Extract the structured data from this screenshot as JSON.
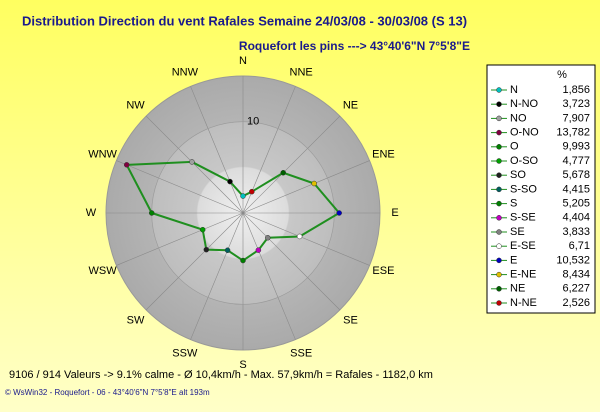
{
  "chart_data": {
    "type": "radar",
    "title": "Distribution Direction du vent Rafales  Semaine 24/03/08 - 30/03/08 (S 13)",
    "subtitle": "Roquefort les pins    --->  43°40'6\"N 7°5'8\"E",
    "axis_labels": [
      "N",
      "NNE",
      "NE",
      "ENE",
      "E",
      "ESE",
      "SE",
      "SSE",
      "S",
      "SSW",
      "SW",
      "WSW",
      "W",
      "WNW",
      "NW",
      "NNW"
    ],
    "categories": [
      "N",
      "N-NO",
      "NO",
      "O-NO",
      "O",
      "O-SO",
      "SO",
      "S-SO",
      "S",
      "S-SE",
      "SE",
      "E-SE",
      "E",
      "E-NE",
      "NE",
      "N-NE"
    ],
    "values": [
      1.856,
      3.723,
      7.907,
      13.782,
      9.993,
      4.777,
      5.678,
      4.415,
      5.205,
      4.404,
      3.833,
      6.71,
      10.532,
      8.434,
      6.227,
      2.526
    ],
    "value_labels": [
      "1,856",
      "3,723",
      "7,907",
      "13,782",
      "9,993",
      "4,777",
      "5,678",
      "4,415",
      "5,205",
      "4,404",
      "3,833",
      "6,71",
      "10,532",
      "8,434",
      "6,227",
      "2,526"
    ],
    "colors": [
      "#00c0c0",
      "#000000",
      "#a0a0a0",
      "#800040",
      "#008000",
      "#00a000",
      "#202020",
      "#006060",
      "#008000",
      "#c000c0",
      "#808080",
      "#ffffff",
      "#0000c0",
      "#e0c000",
      "#006000",
      "#c00000"
    ],
    "line_color": "#1f8f1f",
    "legend_title": "%",
    "ylim": [
      0,
      15
    ],
    "yticks": [
      10
    ],
    "footer": "9106 / 914 Valeurs  -> 9.1% calme    -   Ø 10,4km/h  -  Max. 57,9km/h = Rafales   -   1182,0 km",
    "credit": "© WsWin32  -  Roquefort - 06  -  43°40'6\"N 7°5'8\"E alt 193m"
  }
}
